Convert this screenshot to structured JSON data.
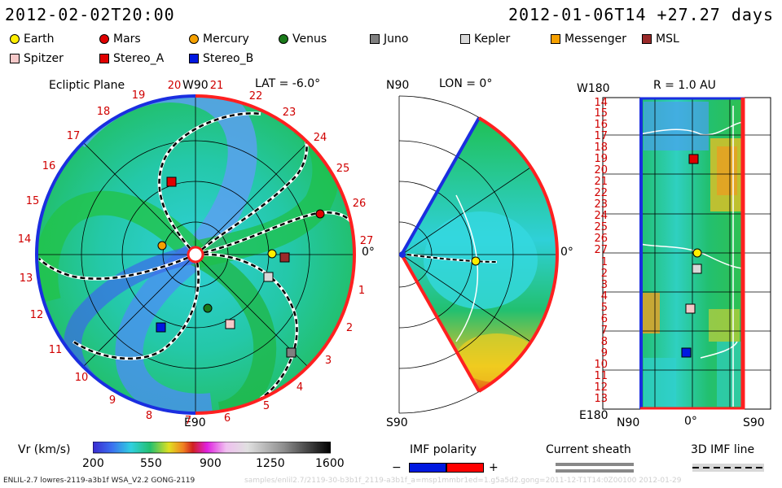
{
  "header": {
    "left_timestamp": "2012-02-02T20:00",
    "right_timestamp": "2012-01-06T14 +27.27 days"
  },
  "legend": {
    "items": [
      {
        "label": "Earth",
        "shape": "circle",
        "color": "#ffee00"
      },
      {
        "label": "Mars",
        "shape": "circle",
        "color": "#e00000"
      },
      {
        "label": "Mercury",
        "shape": "circle",
        "color": "#f5a000"
      },
      {
        "label": "Venus",
        "shape": "circle",
        "color": "#1a7a1a"
      },
      {
        "label": "Juno",
        "shape": "square",
        "color": "#808080"
      },
      {
        "label": "Kepler",
        "shape": "square",
        "color": "#d8d8d8"
      },
      {
        "label": "Messenger",
        "shape": "square",
        "color": "#f5a000"
      },
      {
        "label": "MSL",
        "shape": "square",
        "color": "#9a2a2a"
      },
      {
        "label": "Spitzer",
        "shape": "square",
        "color": "#f5c8c8"
      },
      {
        "label": "Stereo_A",
        "shape": "square",
        "color": "#e00000"
      },
      {
        "label": "Stereo_B",
        "shape": "square",
        "color": "#0018e0"
      }
    ]
  },
  "ecliptic": {
    "title": "Ecliptic Plane",
    "top_label": "W90",
    "bottom_label": "E90",
    "right_label": "0°",
    "lat_label": "LAT = -6.0°",
    "day_ticks": [
      "20",
      "21",
      "22",
      "23",
      "24",
      "25",
      "26",
      "27",
      "1",
      "2",
      "3",
      "4",
      "5",
      "6",
      "7",
      "8",
      "9",
      "10",
      "11",
      "12",
      "13",
      "14",
      "15",
      "16",
      "17",
      "18",
      "19"
    ]
  },
  "meridional": {
    "top_label": "N90",
    "lon_label": "LON = 0°",
    "right_label": "0°",
    "bottom_label": "S90"
  },
  "radial": {
    "title": "R = 1.0 AU",
    "top_left": "W180",
    "bottom_left": "E180",
    "x_labels": [
      "N90",
      "0°",
      "S90"
    ],
    "y_labels": [
      "14",
      "15",
      "16",
      "17",
      "18",
      "19",
      "20",
      "21",
      "22",
      "23",
      "24",
      "25",
      "26",
      "27",
      "1",
      "2",
      "3",
      "4",
      "5",
      "6",
      "7",
      "8",
      "9",
      "10",
      "11",
      "12",
      "13"
    ]
  },
  "colorbar": {
    "title": "Vr (km/s)",
    "ticks": [
      "200",
      "550",
      "900",
      "1250",
      "1600"
    ],
    "min": 200,
    "max": 1600
  },
  "imf": {
    "title": "IMF polarity",
    "minus": "−",
    "plus": "+",
    "neg_color": "#0018e0",
    "pos_color": "#ff0000"
  },
  "sheath": {
    "title": "Current sheath"
  },
  "imf3d": {
    "title": "3D IMF line"
  },
  "footer": {
    "model": "ENLIL-2.7 lowres-2119-a3b1f WSA_V2.2 GONG-2119",
    "watermark": "samples/enlil2.7/2119-30-b3b1f_2119-a3b1f_a=msp1mmbr1ed=1.g5a5d2.gong=2011-12-T1T14:0Z00100 2012-01-29"
  },
  "colors": {
    "blue_ring": "#1a2ee0",
    "red_ring": "#ff2020",
    "tick_red": "#d00000"
  }
}
